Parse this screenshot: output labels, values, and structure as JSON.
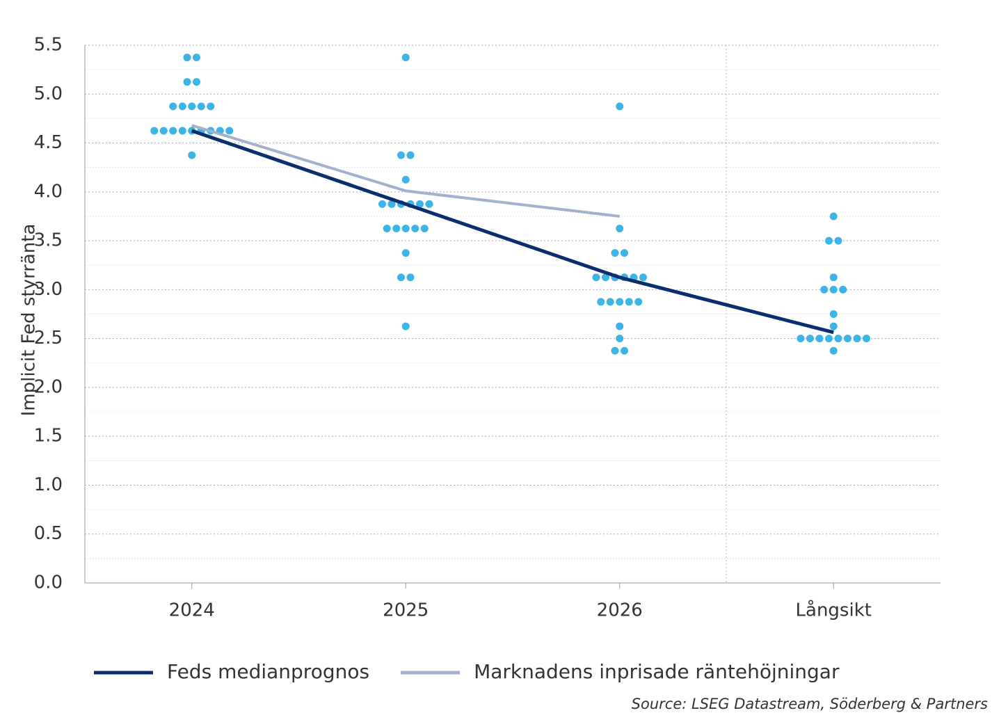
{
  "chart_data": {
    "type": "dot",
    "y_label": "Implicit Fed styrränta",
    "categories": [
      "2024",
      "2025",
      "2026",
      "Långsikt"
    ],
    "ylim": [
      0,
      5.5
    ],
    "yticks": [
      {
        "value": 0,
        "label": "0.0"
      },
      0.5,
      {
        "value": 1,
        "label": "1.0"
      },
      1.5,
      {
        "value": 2,
        "label": "2.0"
      },
      2.5,
      {
        "value": 3,
        "label": "3.0"
      },
      3.5,
      {
        "value": 4,
        "label": "4.0"
      },
      4.5,
      {
        "value": 5,
        "label": "5.0"
      },
      5.5
    ],
    "grid": true,
    "dot_color": "#3cb4e6",
    "dots": [
      [
        5.375,
        5.375,
        5.125,
        5.125,
        4.875,
        4.875,
        4.875,
        4.875,
        4.875,
        4.625,
        4.625,
        4.625,
        4.625,
        4.625,
        4.625,
        4.625,
        4.625,
        4.625,
        4.375
      ],
      [
        5.375,
        4.375,
        4.375,
        4.125,
        3.875,
        3.875,
        3.875,
        3.875,
        3.875,
        3.875,
        3.625,
        3.625,
        3.625,
        3.625,
        3.625,
        3.375,
        3.125,
        3.125,
        2.625
      ],
      [
        4.875,
        3.625,
        3.375,
        3.375,
        3.125,
        3.125,
        3.125,
        3.125,
        3.125,
        3.125,
        2.875,
        2.875,
        2.875,
        2.875,
        2.875,
        2.625,
        2.5,
        2.375,
        2.375
      ],
      [
        3.75,
        3.5,
        3.5,
        3.125,
        3.0,
        3.0,
        3.0,
        2.75,
        2.625,
        2.5,
        2.5,
        2.5,
        2.5,
        2.5,
        2.5,
        2.5,
        2.5,
        2.375
      ]
    ],
    "series": [
      {
        "name": "Feds medianprognos",
        "color": "#0b2e6e",
        "values": [
          4.625,
          3.875,
          3.125,
          2.5625
        ]
      },
      {
        "name": "Marknadens inprisade räntehöjningar",
        "color": "#a3b1cc",
        "values": [
          4.68,
          4.01,
          3.75,
          null
        ]
      }
    ],
    "source": "Source: LSEG Datastream, Söderberg & Partners"
  }
}
